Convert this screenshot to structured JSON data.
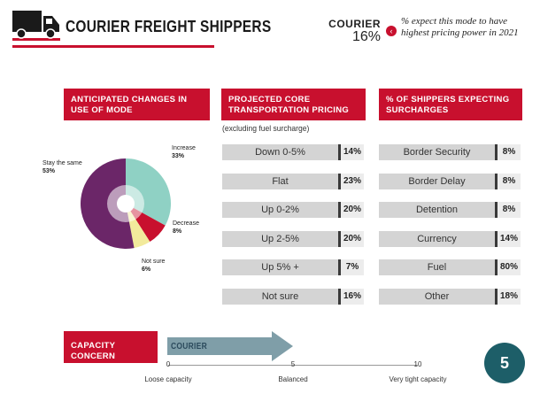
{
  "header": {
    "title": "COURIER FREIGHT SHIPPERS",
    "mode_label": "COURIER",
    "mode_value": "16%",
    "mode_desc": "% expect this mode to have highest pricing power in 2021",
    "icon": "truck-icon",
    "accent": "#c8102e"
  },
  "sections": {
    "anticipated": "ANTICIPATED CHANGES IN USE OF MODE",
    "pricing": "PROJECTED CORE TRANSPORTATION PRICING",
    "pricing_note": "(excluding fuel surcharge)",
    "surcharges": "% OF SHIPPERS EXPECTING SURCHARGES"
  },
  "chart_data": [
    {
      "type": "pie",
      "title": "ANTICIPATED CHANGES IN USE OF MODE",
      "categories": [
        "Increase",
        "Decrease",
        "Not sure",
        "Stay the same"
      ],
      "values": [
        33,
        8,
        6,
        53
      ],
      "labels": [
        "33%",
        "8%",
        "6%",
        "53%"
      ],
      "colors": [
        "#8fd1c4",
        "#c8102e",
        "#f2ea9c",
        "#6b2668"
      ]
    },
    {
      "type": "bar",
      "title": "PROJECTED CORE TRANSPORTATION PRICING",
      "subtitle": "(excluding fuel surcharge)",
      "categories": [
        "Down 0-5%",
        "Flat",
        "Up 0-2%",
        "Up 2-5%",
        "Up 5% +",
        "Not sure"
      ],
      "values": [
        14,
        23,
        20,
        20,
        7,
        16
      ],
      "labels": [
        "14%",
        "23%",
        "20%",
        "20%",
        "7%",
        "16%"
      ]
    },
    {
      "type": "bar",
      "title": "% OF SHIPPERS EXPECTING SURCHARGES",
      "categories": [
        "Border Security",
        "Border Delay",
        "Detention",
        "Currency",
        "Fuel",
        "Other"
      ],
      "values": [
        8,
        8,
        8,
        14,
        80,
        18
      ],
      "labels": [
        "8%",
        "8%",
        "8%",
        "14%",
        "80%",
        "18%"
      ]
    },
    {
      "type": "bar",
      "title": "CAPACITY CONCERN",
      "series": [
        {
          "name": "COURIER",
          "values": [
            5
          ]
        }
      ],
      "xlim": [
        0,
        10
      ],
      "ticks": [
        "0",
        "5",
        "10"
      ],
      "tick_labels": [
        "Loose capacity",
        "Balanced",
        "Very tight capacity"
      ],
      "arrow_color": "#7f9ea8"
    }
  ],
  "capacity": {
    "label": "CAPACITY CONCERN"
  },
  "page_number": "5"
}
